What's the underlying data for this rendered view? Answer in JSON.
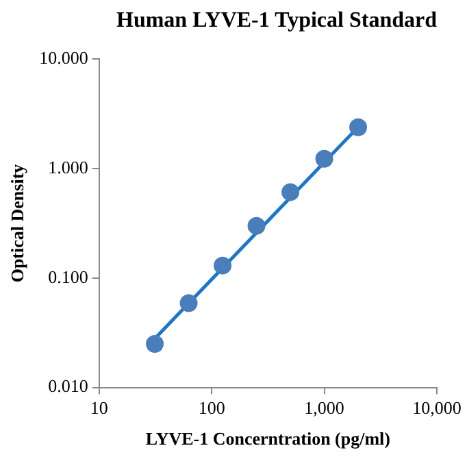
{
  "chart_data": {
    "type": "scatter",
    "title": "Human LYVE-1 Typical Standard",
    "xlabel": "LYVE-1 Concerntration (pg/ml)",
    "ylabel": "Optical Density",
    "x": [
      31.25,
      62.5,
      125,
      250,
      500,
      1000,
      2000
    ],
    "series": [
      {
        "type": "scatter",
        "color": "#4a7ebb",
        "values": [
          0.025,
          0.059,
          0.13,
          0.3,
          0.61,
          1.23,
          2.39
        ],
        "marker": "circle"
      },
      {
        "type": "line",
        "color": "#1f77c4",
        "x": [
          31.25,
          2000
        ],
        "values": [
          0.028,
          2.4
        ],
        "marker": "none",
        "line_style": "solid"
      }
    ],
    "log": "xy",
    "xlim": [
      10,
      10000
    ],
    "ylim": [
      0.01,
      10
    ],
    "xticks": [
      10,
      100,
      {
        "value": 1000,
        "label": "1,000"
      },
      {
        "value": 10000,
        "label": "10,000"
      }
    ],
    "yticks": [
      {
        "value": 0.01,
        "label": "0.010"
      },
      {
        "value": 0.1,
        "label": "0.100"
      },
      {
        "value": 1,
        "label": "1.000"
      },
      {
        "value": 10,
        "label": "10.000"
      }
    ],
    "grid": false,
    "legend": false
  }
}
